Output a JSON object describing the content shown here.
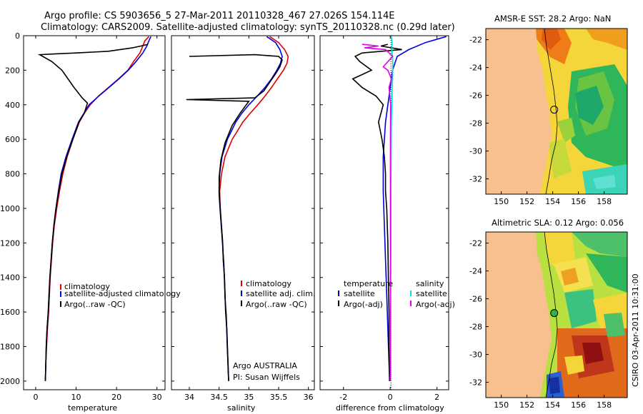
{
  "header": {
    "line1": "Argo profile: CS 5903656_5 27-Mar-2011 20110328_467 27.026S 154.114E",
    "line2": "Climatology: CARS2009. Satellite-adjusted climatology: synTS_20110328.nc (0.29d later)"
  },
  "side_label": "CSIRO 03-Apr-2011 10:31:00",
  "colors": {
    "climatology": "#dd0000",
    "satellite": "#0000dd",
    "argo": "#000000",
    "satellite_salinity": "#00e0e0",
    "argo_salinity": "#e000e0",
    "land": "#f7c08e"
  },
  "chart_data": [
    {
      "type": "line",
      "name": "temperature",
      "xlabel": "temperature",
      "ylabel": "",
      "xlim": [
        -3,
        32
      ],
      "ylim": [
        2050,
        0
      ],
      "xticks": [
        0,
        10,
        20,
        30
      ],
      "yticks": [
        0,
        200,
        400,
        600,
        800,
        1000,
        1200,
        1400,
        1600,
        1800,
        2000
      ],
      "legend": [
        "climatology",
        "satellite-adjusted climatology",
        "Argo(..raw -QC)"
      ],
      "series": [
        {
          "name": "climatology",
          "color": "#dd0000",
          "points": [
            [
              28,
              5
            ],
            [
              27,
              30
            ],
            [
              26.5,
              60
            ],
            [
              25.8,
              100
            ],
            [
              24.2,
              150
            ],
            [
              22.8,
              200
            ],
            [
              20.5,
              250
            ],
            [
              18,
              300
            ],
            [
              15.5,
              350
            ],
            [
              13.5,
              400
            ],
            [
              12,
              450
            ],
            [
              10.8,
              500
            ],
            [
              9.2,
              600
            ],
            [
              7.8,
              700
            ],
            [
              6.7,
              800
            ],
            [
              5.9,
              900
            ],
            [
              5.2,
              1000
            ],
            [
              4.6,
              1100
            ],
            [
              4.2,
              1200
            ],
            [
              3.9,
              1300
            ],
            [
              3.6,
              1400
            ],
            [
              3.4,
              1500
            ],
            [
              3.2,
              1600
            ],
            [
              2.9,
              1700
            ],
            [
              2.7,
              1800
            ],
            [
              2.5,
              1900
            ],
            [
              2.4,
              2000
            ]
          ]
        },
        {
          "name": "satellite-adjusted climatology",
          "color": "#0000dd",
          "points": [
            [
              28.5,
              5
            ],
            [
              28,
              30
            ],
            [
              27.5,
              60
            ],
            [
              26.5,
              100
            ],
            [
              24.8,
              150
            ],
            [
              22.9,
              200
            ],
            [
              20.6,
              250
            ],
            [
              18.1,
              300
            ],
            [
              15.6,
              350
            ],
            [
              13.2,
              400
            ],
            [
              11.9,
              450
            ],
            [
              10.6,
              500
            ],
            [
              9,
              600
            ],
            [
              7.5,
              700
            ],
            [
              6.3,
              800
            ],
            [
              5.6,
              900
            ],
            [
              5,
              1000
            ],
            [
              4.5,
              1100
            ],
            [
              4.1,
              1200
            ],
            [
              3.8,
              1300
            ],
            [
              3.5,
              1400
            ],
            [
              3.3,
              1500
            ],
            [
              3.1,
              1600
            ],
            [
              2.8,
              1700
            ],
            [
              2.6,
              1800
            ],
            [
              2.5,
              1900
            ],
            [
              2.4,
              2000
            ]
          ]
        },
        {
          "name": "Argo(..raw -QC)",
          "color": "#000000",
          "points": [
            [
              27.8,
              50
            ],
            [
              26,
              60
            ],
            [
              24,
              70
            ],
            [
              18,
              90
            ],
            [
              10,
              100
            ],
            [
              5,
              105
            ],
            [
              1,
              110
            ],
            [
              4,
              150
            ],
            [
              6.5,
              200
            ],
            [
              9.5,
              300
            ],
            [
              11.5,
              360
            ],
            [
              12.8,
              390
            ],
            [
              12,
              450
            ],
            [
              10.7,
              500
            ],
            [
              9.2,
              600
            ],
            [
              7.7,
              700
            ],
            [
              6.5,
              800
            ],
            [
              5.7,
              900
            ],
            [
              5,
              1000
            ],
            [
              4.5,
              1100
            ],
            [
              4.1,
              1200
            ],
            [
              3.8,
              1300
            ],
            [
              3.5,
              1400
            ],
            [
              3.3,
              1500
            ],
            [
              3.1,
              1600
            ],
            [
              2.8,
              1700
            ],
            [
              2.6,
              1800
            ],
            [
              2.5,
              1900
            ],
            [
              2.4,
              1995
            ]
          ]
        }
      ]
    },
    {
      "type": "line",
      "name": "salinity",
      "xlabel": "salinity",
      "ylabel": "",
      "xlim": [
        33.7,
        36.1
      ],
      "ylim": [
        2050,
        0
      ],
      "xticks": [
        34,
        34.5,
        35,
        35.5,
        36
      ],
      "annotation": [
        "Argo AUSTRALIA",
        "PI: Susan Wijffels"
      ],
      "legend": [
        "climatology",
        "satellite adj. clim.",
        "Argo(..raw -QC)"
      ],
      "series": [
        {
          "name": "climatology",
          "color": "#dd0000",
          "points": [
            [
              35.35,
              5
            ],
            [
              35.5,
              40
            ],
            [
              35.6,
              80
            ],
            [
              35.66,
              120
            ],
            [
              35.64,
              160
            ],
            [
              35.58,
              200
            ],
            [
              35.48,
              250
            ],
            [
              35.38,
              300
            ],
            [
              35.27,
              350
            ],
            [
              35.15,
              400
            ],
            [
              35.02,
              450
            ],
            [
              34.9,
              500
            ],
            [
              34.72,
              600
            ],
            [
              34.6,
              700
            ],
            [
              34.54,
              800
            ],
            [
              34.51,
              900
            ],
            [
              34.52,
              1000
            ],
            [
              34.54,
              1100
            ],
            [
              34.56,
              1200
            ],
            [
              34.57,
              1300
            ],
            [
              34.59,
              1400
            ],
            [
              34.6,
              1500
            ],
            [
              34.61,
              1600
            ],
            [
              34.63,
              1700
            ],
            [
              34.64,
              1800
            ],
            [
              34.65,
              1900
            ],
            [
              34.66,
              2000
            ]
          ]
        },
        {
          "name": "satellite adj. clim.",
          "color": "#0000dd",
          "points": [
            [
              35.3,
              5
            ],
            [
              35.45,
              40
            ],
            [
              35.52,
              80
            ],
            [
              35.56,
              120
            ],
            [
              35.53,
              160
            ],
            [
              35.47,
              200
            ],
            [
              35.38,
              250
            ],
            [
              35.27,
              300
            ],
            [
              35.14,
              350
            ],
            [
              35,
              400
            ],
            [
              34.88,
              450
            ],
            [
              34.78,
              500
            ],
            [
              34.64,
              600
            ],
            [
              34.55,
              700
            ],
            [
              34.51,
              800
            ],
            [
              34.5,
              900
            ],
            [
              34.52,
              1000
            ],
            [
              34.54,
              1100
            ],
            [
              34.56,
              1200
            ],
            [
              34.57,
              1300
            ],
            [
              34.59,
              1400
            ],
            [
              34.6,
              1500
            ],
            [
              34.61,
              1600
            ],
            [
              34.63,
              1700
            ],
            [
              34.64,
              1800
            ],
            [
              34.65,
              1900
            ],
            [
              34.66,
              2000
            ]
          ]
        },
        {
          "name": "Argo(..raw -QC)",
          "color": "#000000",
          "points": [
            [
              34,
              120
            ],
            [
              35.1,
              110
            ],
            [
              35.5,
              120
            ],
            [
              35.56,
              140
            ],
            [
              35.52,
              180
            ],
            [
              35.45,
              220
            ],
            [
              35.35,
              270
            ],
            [
              35.25,
              320
            ],
            [
              35.1,
              360
            ],
            [
              33.95,
              370
            ],
            [
              35,
              380
            ],
            [
              34.85,
              450
            ],
            [
              34.72,
              520
            ],
            [
              34.6,
              620
            ],
            [
              34.53,
              720
            ],
            [
              34.5,
              820
            ],
            [
              34.5,
              920
            ],
            [
              34.52,
              1020
            ],
            [
              34.54,
              1120
            ],
            [
              34.56,
              1220
            ],
            [
              34.58,
              1320
            ],
            [
              34.59,
              1420
            ],
            [
              34.6,
              1520
            ],
            [
              34.62,
              1620
            ],
            [
              34.63,
              1720
            ],
            [
              34.64,
              1820
            ],
            [
              34.65,
              1920
            ],
            [
              34.66,
              1995
            ]
          ]
        }
      ]
    },
    {
      "type": "line",
      "name": "difference",
      "xlabel": "difference from climatology",
      "ylabel": "",
      "xlim": [
        -3,
        2.5
      ],
      "ylim": [
        2050,
        0
      ],
      "xticks": [
        -2,
        0,
        2
      ],
      "legend_headers": [
        "temperature",
        "salinity"
      ],
      "legend": [
        "satellite",
        "Argo(-adj)",
        "satellite",
        "Argo(-adj)"
      ],
      "series": [
        {
          "name": "temperature satellite",
          "color": "#0000dd",
          "points": [
            [
              2.4,
              5
            ],
            [
              1.5,
              40
            ],
            [
              0.8,
              80
            ],
            [
              0.3,
              120
            ],
            [
              0.2,
              160
            ],
            [
              0.1,
              200
            ],
            [
              0,
              300
            ],
            [
              -0.2,
              500
            ],
            [
              -0.25,
              600
            ],
            [
              -0.3,
              700
            ],
            [
              -0.3,
              900
            ],
            [
              -0.25,
              1100
            ],
            [
              -0.2,
              1300
            ],
            [
              -0.15,
              1500
            ],
            [
              -0.1,
              1700
            ],
            [
              -0.05,
              1900
            ],
            [
              -0.02,
              2000
            ]
          ]
        },
        {
          "name": "temperature Argo(-adj)",
          "color": "#000000",
          "points": [
            [
              -0.1,
              50
            ],
            [
              -0.4,
              60
            ],
            [
              0.5,
              80
            ],
            [
              -1.2,
              100
            ],
            [
              -1.5,
              120
            ],
            [
              -1.3,
              150
            ],
            [
              -0.8,
              200
            ],
            [
              -1.6,
              250
            ],
            [
              -1.2,
              300
            ],
            [
              -0.6,
              350
            ],
            [
              -0.3,
              400
            ],
            [
              -0.5,
              500
            ],
            [
              -0.35,
              600
            ],
            [
              -0.25,
              700
            ],
            [
              -0.2,
              800
            ],
            [
              -0.2,
              900
            ],
            [
              -0.15,
              1000
            ],
            [
              -0.1,
              1200
            ],
            [
              -0.08,
              1400
            ],
            [
              -0.05,
              1600
            ],
            [
              -0.05,
              1800
            ],
            [
              -0.03,
              2000
            ]
          ]
        },
        {
          "name": "salinity satellite",
          "color": "#00e0e0",
          "points": [
            [
              0.05,
              5
            ],
            [
              0.08,
              40
            ],
            [
              0.06,
              80
            ],
            [
              0.1,
              120
            ],
            [
              0.11,
              160
            ],
            [
              0.11,
              200
            ],
            [
              0.1,
              250
            ],
            [
              0.09,
              300
            ],
            [
              0.07,
              400
            ],
            [
              0.05,
              500
            ],
            [
              0.04,
              700
            ],
            [
              0.03,
              900
            ],
            [
              0.03,
              1200
            ],
            [
              0.02,
              1500
            ],
            [
              0.02,
              1800
            ],
            [
              0.01,
              2000
            ]
          ]
        },
        {
          "name": "salinity Argo(-adj)",
          "color": "#e000e0",
          "points": [
            [
              -1.2,
              50
            ],
            [
              -0.5,
              60
            ],
            [
              -1.1,
              70
            ],
            [
              -0.2,
              80
            ],
            [
              0.1,
              120
            ],
            [
              -0.3,
              180
            ],
            [
              -0.1,
              200
            ],
            [
              0.05,
              250
            ],
            [
              -0.05,
              300
            ],
            [
              0.02,
              400
            ],
            [
              0.01,
              600
            ],
            [
              0.01,
              1000
            ],
            [
              0.01,
              1500
            ],
            [
              0.01,
              2000
            ]
          ]
        }
      ]
    },
    {
      "type": "heatmap",
      "name": "sst_map",
      "title": "AMSR-E SST: 28.2 Argo: NaN",
      "xlim": [
        148.8,
        159.8
      ],
      "ylim": [
        -33.1,
        -21.2
      ],
      "xticks": [
        150,
        152,
        154,
        156,
        158
      ],
      "yticks": [
        -22,
        -24,
        -26,
        -28,
        -30,
        -32
      ],
      "float_position": [
        154.114,
        -27.026
      ]
    },
    {
      "type": "heatmap",
      "name": "sla_map",
      "title": "Altimetric SLA: 0.12 Argo: 0.056",
      "xlim": [
        148.8,
        159.8
      ],
      "ylim": [
        -33.1,
        -21.2
      ],
      "xticks": [
        150,
        152,
        154,
        156,
        158
      ],
      "yticks": [
        -22,
        -24,
        -26,
        -28,
        -30,
        -32
      ],
      "float_position": [
        154.114,
        -27.026
      ]
    }
  ]
}
